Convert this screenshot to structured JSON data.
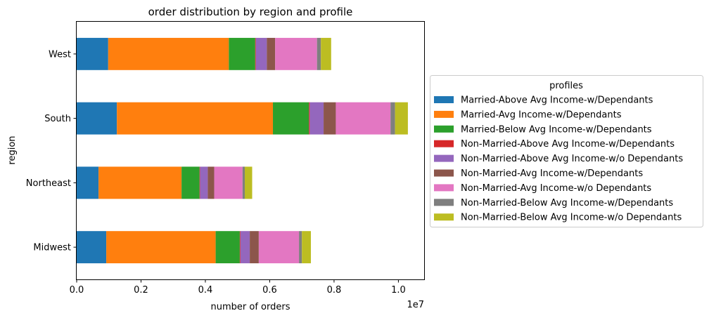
{
  "chart_data": {
    "type": "bar",
    "orientation": "horizontal",
    "stacked": true,
    "title": "order distribution by region and profile",
    "xlabel": "number of orders",
    "ylabel": "region",
    "x_offset_label": "1e7",
    "xlim": [
      0,
      10800000
    ],
    "x_ticks": [
      0,
      2000000,
      4000000,
      6000000,
      8000000,
      10000000
    ],
    "x_tick_labels": [
      "0.0",
      "0.2",
      "0.4",
      "0.6",
      "0.8",
      "1.0"
    ],
    "grid": false,
    "legend_title": "profiles",
    "legend_position": "center-right outside",
    "categories": [
      "Midwest",
      "Northeast",
      "South",
      "West"
    ],
    "series": [
      {
        "name": "Married-Above Avg Income-w/Dependants",
        "color": "#1f77b4",
        "values": [
          920000,
          680000,
          1250000,
          980000
        ]
      },
      {
        "name": "Married-Avg Income-w/Dependants",
        "color": "#ff7f0e",
        "values": [
          3400000,
          2580000,
          4850000,
          3750000
        ]
      },
      {
        "name": "Married-Below Avg Income-w/Dependants",
        "color": "#2ca02c",
        "values": [
          750000,
          560000,
          1120000,
          820000
        ]
      },
      {
        "name": "Non-Married-Above Avg Income-w/Dependants",
        "color": "#d62728",
        "values": [
          20000,
          15000,
          25000,
          20000
        ]
      },
      {
        "name": "Non-Married-Above Avg Income-w/o Dependants",
        "color": "#9467bd",
        "values": [
          290000,
          240000,
          430000,
          340000
        ]
      },
      {
        "name": "Non-Married-Avg Income-w/Dependants",
        "color": "#8c564b",
        "values": [
          280000,
          200000,
          380000,
          260000
        ]
      },
      {
        "name": "Non-Married-Avg Income-w/o Dependants",
        "color": "#e377c2",
        "values": [
          1250000,
          880000,
          1700000,
          1300000
        ]
      },
      {
        "name": "Non-Married-Below Avg Income-w/Dependants",
        "color": "#7f7f7f",
        "values": [
          90000,
          70000,
          140000,
          120000
        ]
      },
      {
        "name": "Non-Married-Below Avg Income-w/o Dependants",
        "color": "#bcbd22",
        "values": [
          280000,
          230000,
          400000,
          320000
        ]
      }
    ]
  }
}
